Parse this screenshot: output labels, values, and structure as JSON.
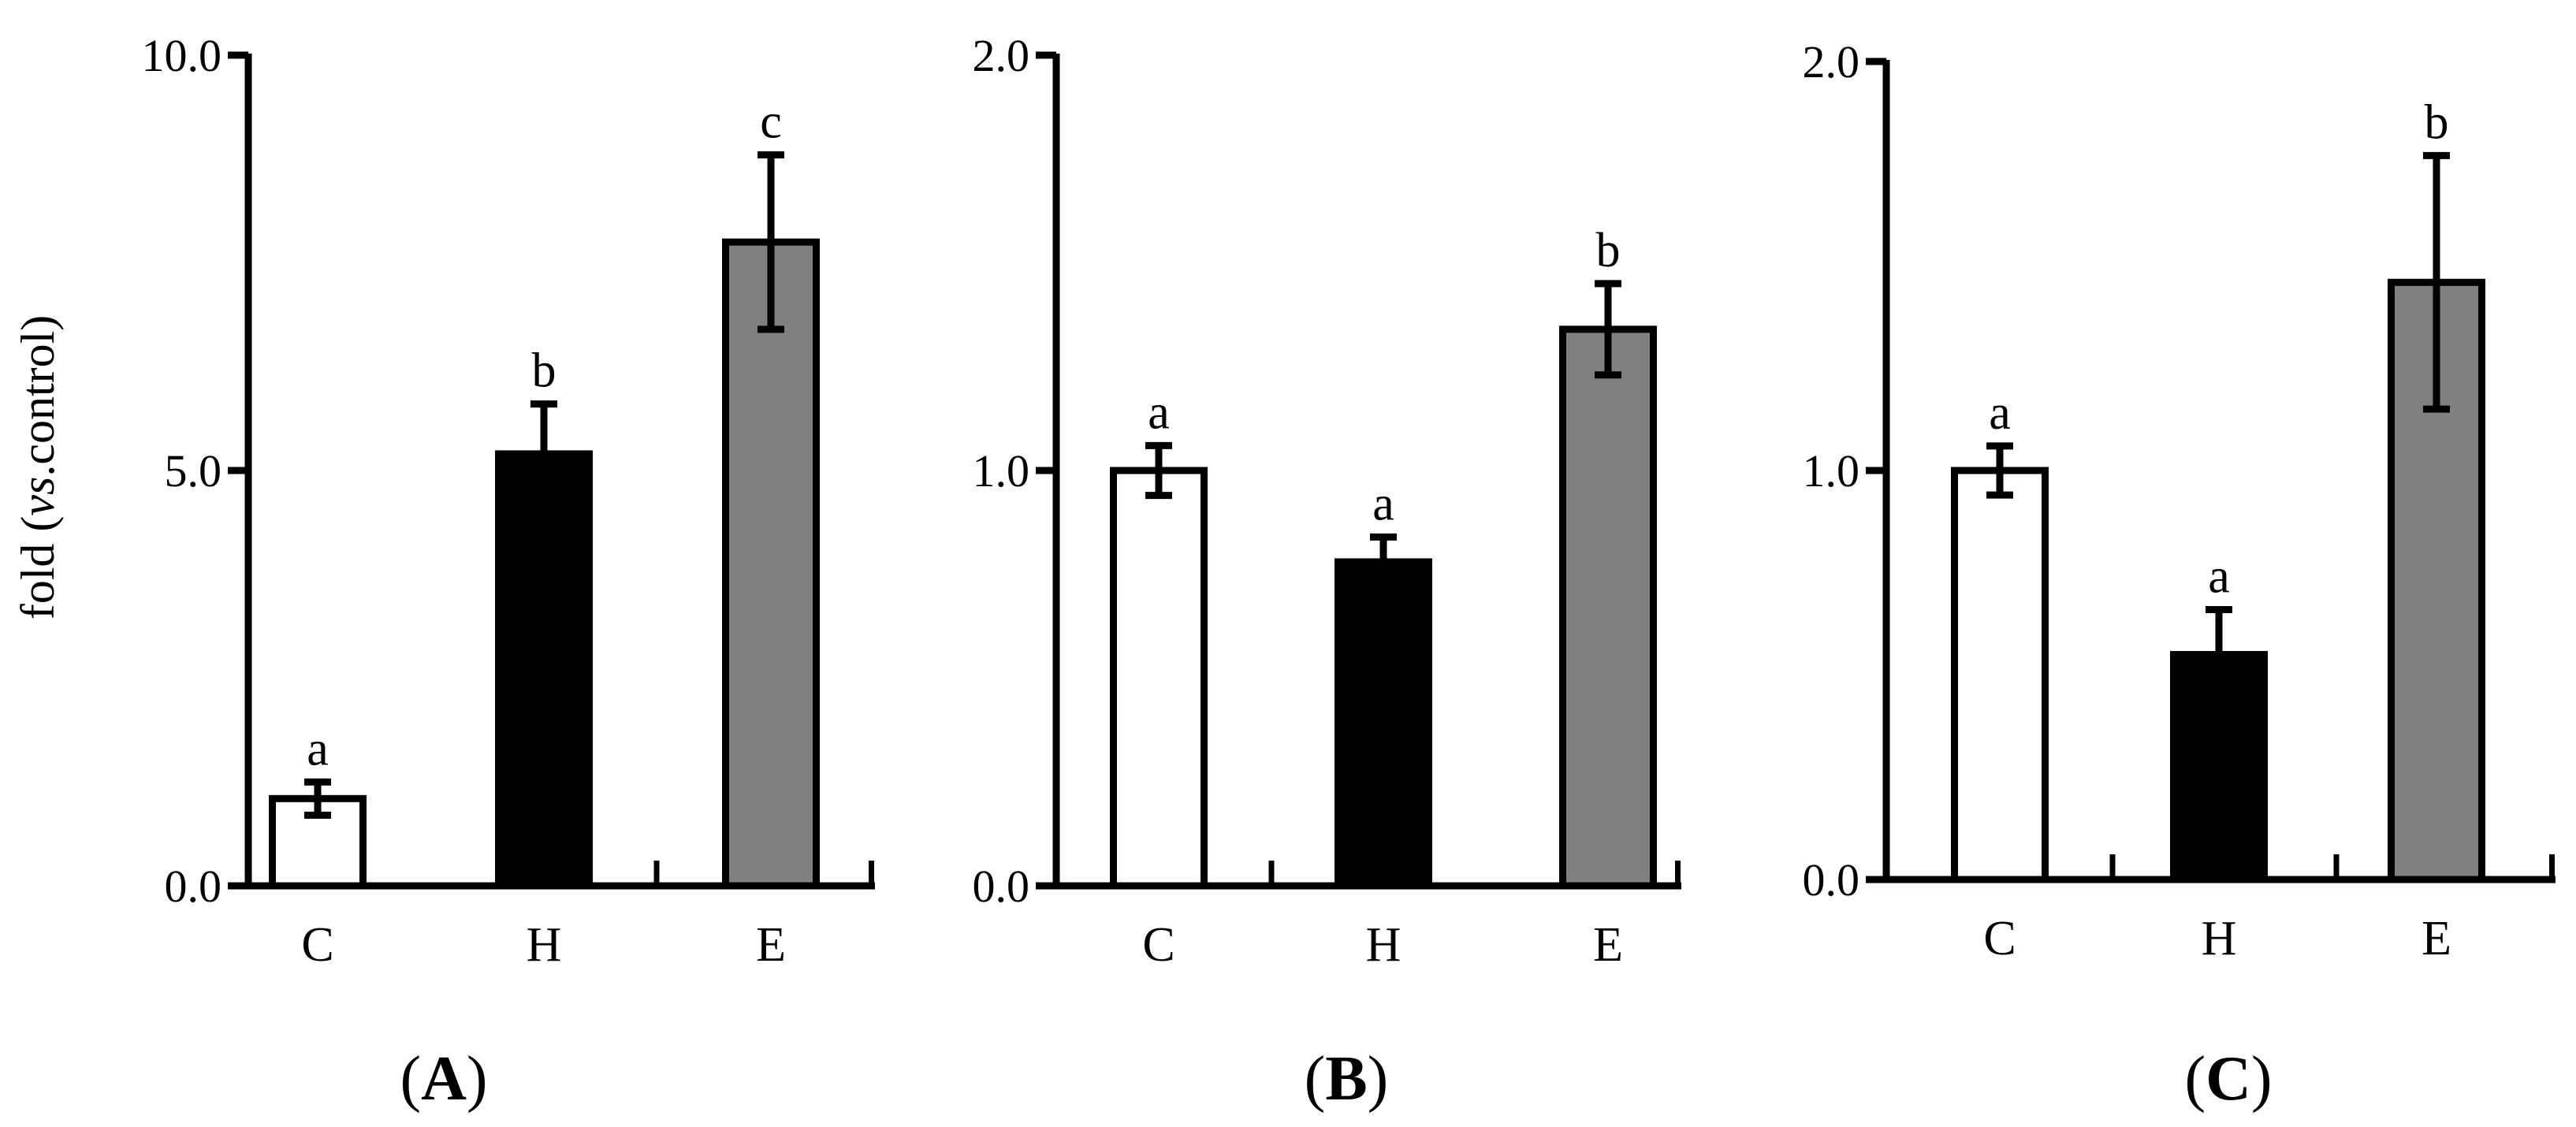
{
  "ylabel": {
    "prefix": "fold (",
    "italic": "vs",
    "suffix": ".control)"
  },
  "colors": {
    "C": "#ffffff",
    "H": "#000000",
    "E": "#808080",
    "axis": "#000000"
  },
  "chart_data": [
    {
      "type": "bar",
      "panel": "A",
      "categories": [
        "C",
        "H",
        "E"
      ],
      "values": [
        1.05,
        5.2,
        7.75
      ],
      "errors": [
        0.2,
        0.6,
        1.05
      ],
      "significance": [
        "a",
        "b",
        "c"
      ],
      "ylim": [
        0,
        10
      ],
      "yticks": [
        "0.0",
        "5.0",
        "10.0"
      ],
      "ytick_values": [
        0,
        5,
        10
      ]
    },
    {
      "type": "bar",
      "panel": "B",
      "categories": [
        "C",
        "H",
        "E"
      ],
      "values": [
        1.0,
        0.78,
        1.34
      ],
      "errors": [
        0.06,
        0.06,
        0.11
      ],
      "significance": [
        "a",
        "a",
        "b"
      ],
      "ylim": [
        0,
        2
      ],
      "yticks": [
        "0.0",
        "1.0",
        "2.0"
      ],
      "ytick_values": [
        0,
        1,
        2
      ]
    },
    {
      "type": "bar",
      "panel": "C",
      "categories": [
        "C",
        "H",
        "E"
      ],
      "values": [
        1.0,
        0.55,
        1.46
      ],
      "errors": [
        0.06,
        0.11,
        0.31
      ],
      "significance": [
        "a",
        "a",
        "b"
      ],
      "ylim": [
        0,
        2
      ],
      "yticks": [
        "0.0",
        "1.0",
        "2.0"
      ],
      "ytick_values": [
        0,
        1,
        2
      ]
    }
  ]
}
